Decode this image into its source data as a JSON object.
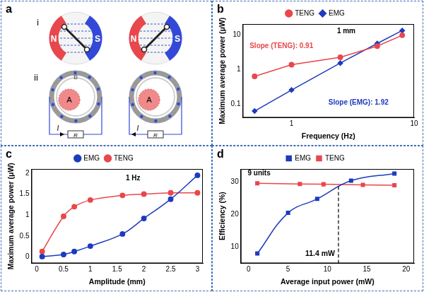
{
  "diagram": {
    "panel": "a",
    "rows": [
      {
        "label": "i",
        "units": [
          {
            "north": "N",
            "south": "S"
          },
          {
            "north": "N",
            "south": "S"
          }
        ]
      },
      {
        "label": "ii",
        "units": [
          {
            "rotor": "A",
            "stator": "B",
            "load": "R",
            "current": "I"
          },
          {
            "rotor": "A",
            "load": "R",
            "current": "I"
          }
        ]
      }
    ]
  },
  "chart_data": [
    {
      "panel": "b",
      "type": "line",
      "log": true,
      "grid": false,
      "legend": "top",
      "x_label": "Frequency (Hz)",
      "y_label": "Maximum average power (μW)",
      "xlim": [
        0.4,
        10
      ],
      "xticks": [
        1,
        10
      ],
      "ylim": [
        0.04,
        20
      ],
      "yticks": [
        0.1,
        1,
        10
      ],
      "annotations": [
        {
          "text": "1 mm",
          "color": "#000000"
        },
        {
          "text": "Slope (TENG): 0.91",
          "color": "#e8474c"
        },
        {
          "text": "Slope (EMG): 1.92",
          "color": "#1d3bbd"
        }
      ],
      "series": [
        {
          "name": "TENG",
          "color": "#e8474c",
          "marker": "circle",
          "line_style": "solid",
          "x": [
            0.5,
            1,
            2.5,
            5,
            8
          ],
          "values": [
            0.62,
            1.35,
            2.2,
            4.6,
            9.5
          ]
        },
        {
          "name": "EMG",
          "color": "#1d3bbd",
          "marker": "diamond",
          "line_style": "solid",
          "x": [
            0.5,
            1,
            2.5,
            5,
            8
          ],
          "values": [
            0.062,
            0.25,
            1.5,
            5.5,
            13
          ]
        }
      ]
    },
    {
      "panel": "c",
      "type": "line",
      "grid": false,
      "legend": "top",
      "x_label": "Amplitude (mm)",
      "y_label": "Maximum average power (μW)",
      "xlim": [
        -0.1,
        3.1
      ],
      "xticks": [
        0,
        0.5,
        1,
        1.5,
        2,
        2.5,
        3
      ],
      "ylim": [
        -0.15,
        2.1
      ],
      "yticks": [
        0,
        0.5,
        1,
        1.5,
        2
      ],
      "annotations": [
        {
          "text": "1 Hz",
          "color": "#000000"
        }
      ],
      "series": [
        {
          "name": "EMG",
          "color": "#1d3bbd",
          "marker": "circle",
          "line_style": "smooth",
          "x": [
            0.1,
            0.5,
            0.7,
            1,
            1.6,
            2,
            2.5,
            3
          ],
          "values": [
            0.01,
            0.06,
            0.13,
            0.26,
            0.55,
            0.92,
            1.38,
            1.95
          ]
        },
        {
          "name": "TENG",
          "color": "#e8474c",
          "marker": "circle",
          "line_style": "smooth",
          "x": [
            0.1,
            0.5,
            0.7,
            1,
            1.6,
            2,
            2.5,
            3
          ],
          "values": [
            0.13,
            0.97,
            1.2,
            1.36,
            1.47,
            1.5,
            1.53,
            1.53
          ]
        }
      ]
    },
    {
      "panel": "d",
      "type": "line",
      "grid": false,
      "legend": "top",
      "x_label": "Average input power (mW)",
      "y_label": "Efficiency (%)",
      "xlim": [
        -1,
        21
      ],
      "xticks": [
        0,
        5,
        10,
        15,
        20
      ],
      "ylim": [
        5,
        34
      ],
      "yticks": [
        10,
        20,
        30
      ],
      "annotations": [
        {
          "text": "9 units",
          "color": "#000000"
        }
      ],
      "reference_line": {
        "x": 11.4,
        "y": 29.3,
        "label": "11.4 mW",
        "line_style": "dashed"
      },
      "series": [
        {
          "name": "EMG",
          "color": "#1d3bbd",
          "marker": "square",
          "line_style": "smooth",
          "x": [
            1.1,
            5,
            8.7,
            13,
            18.5
          ],
          "values": [
            8,
            20.5,
            24.8,
            30.4,
            32.6
          ]
        },
        {
          "name": "TENG",
          "color": "#e8474c",
          "marker": "square",
          "line_style": "solid",
          "x": [
            1.1,
            6.5,
            9.5,
            14.5,
            18.5
          ],
          "values": [
            29.6,
            29.4,
            29.3,
            29.1,
            29.0
          ]
        }
      ]
    }
  ]
}
